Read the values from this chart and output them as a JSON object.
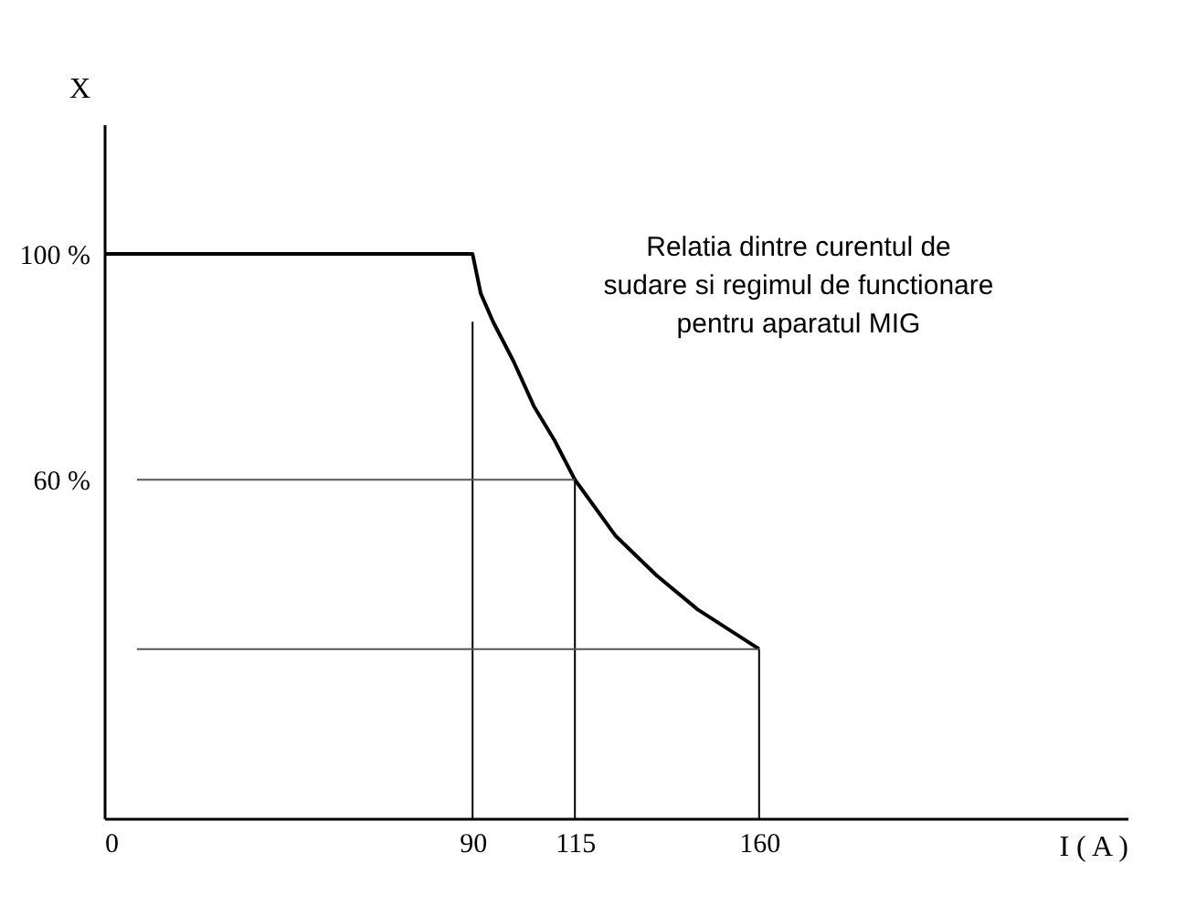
{
  "chart_data": {
    "type": "line",
    "xlabel": "I ( A )",
    "ylabel": "X",
    "xlim": [
      0,
      250
    ],
    "ylim": [
      0,
      123
    ],
    "xticks": [
      0,
      90,
      115,
      160
    ],
    "yticks": [
      {
        "value": 60,
        "label": "60 %"
      },
      {
        "value": 100,
        "label": "100 %"
      }
    ],
    "grid": false,
    "marker": "none",
    "annotations": [
      "Relatia dintre curentul de\nsudare si regimul de functionare\npentru aparatul MIG"
    ],
    "series": [
      {
        "color": "#000000",
        "x": [
          0,
          90,
          92,
          95,
          100,
          105,
          110,
          115,
          125,
          135,
          145,
          160
        ],
        "values": [
          100,
          100,
          93,
          88,
          81,
          73,
          67,
          60,
          50,
          43,
          37,
          30
        ]
      },
      {
        "color": "#000000",
        "x": [
          90,
          90
        ],
        "values": [
          0,
          88
        ]
      },
      {
        "color": "#000000",
        "x": [
          115,
          115
        ],
        "values": [
          0,
          60
        ]
      },
      {
        "color": "#000000",
        "x": [
          160,
          160
        ],
        "values": [
          0,
          30
        ]
      },
      {
        "color": "#555555",
        "x": [
          8,
          115
        ],
        "values": [
          60,
          60
        ]
      },
      {
        "color": "#555555",
        "x": [
          8,
          160
        ],
        "values": [
          30,
          30
        ]
      }
    ]
  }
}
